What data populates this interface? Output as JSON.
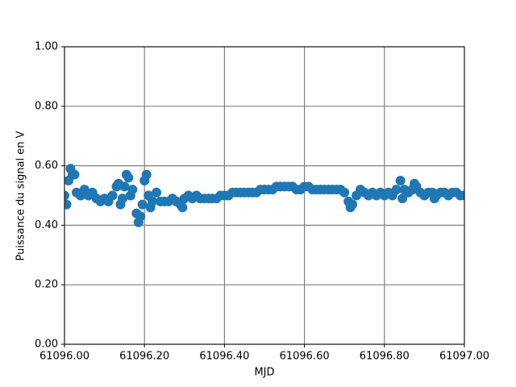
{
  "chart_data": {
    "type": "scatter",
    "xlabel": "MJD",
    "ylabel": "Puissance du signal en V",
    "xlim": [
      61096,
      61097
    ],
    "xticks": [
      {
        "value": 61096,
        "label": "61096.00"
      },
      {
        "value": 61096.2,
        "label": "61096.20"
      },
      {
        "value": 61096.4,
        "label": "61096.40"
      },
      {
        "value": 61096.6,
        "label": "61096.60"
      },
      {
        "value": 61096.8,
        "label": "61096.80"
      },
      {
        "value": 61097,
        "label": "61097.00"
      }
    ],
    "ylim": [
      0,
      1
    ],
    "yticks": [
      {
        "value": 0,
        "label": "0.00"
      },
      {
        "value": 0.2,
        "label": "0.20"
      },
      {
        "value": 0.4,
        "label": "0.40"
      },
      {
        "value": 0.6,
        "label": "0.60"
      },
      {
        "value": 0.8,
        "label": "0.80"
      },
      {
        "value": 1,
        "label": "1.00"
      }
    ],
    "grid": true,
    "series": [
      {
        "color": "#1f77b4",
        "x": [
          61096,
          61096.005,
          61096.01,
          61096.015,
          61096.02,
          61096.025,
          61096.03,
          61096.04,
          61096.05,
          61096.06,
          61096.07,
          61096.08,
          61096.09,
          61096.1,
          61096.11,
          61096.12,
          61096.13,
          61096.135,
          61096.14,
          61096.145,
          61096.15,
          61096.155,
          61096.16,
          61096.165,
          61096.17,
          61096.18,
          61096.185,
          61096.19,
          61096.195,
          61096.2,
          61096.205,
          61096.21,
          61096.215,
          61096.22,
          61096.23,
          61096.24,
          61096.25,
          61096.26,
          61096.27,
          61096.28,
          61096.29,
          61096.295,
          61096.3,
          61096.31,
          61096.32,
          61096.33,
          61096.34,
          61096.35,
          61096.36,
          61096.37,
          61096.38,
          61096.39,
          61096.4,
          61096.41,
          61096.42,
          61096.43,
          61096.44,
          61096.45,
          61096.46,
          61096.47,
          61096.48,
          61096.49,
          61096.5,
          61096.51,
          61096.52,
          61096.53,
          61096.54,
          61096.55,
          61096.56,
          61096.57,
          61096.58,
          61096.59,
          61096.6,
          61096.61,
          61096.62,
          61096.63,
          61096.64,
          61096.65,
          61096.66,
          61096.67,
          61096.68,
          61096.69,
          61096.7,
          61096.71,
          61096.715,
          61096.72,
          61096.73,
          61096.74,
          61096.75,
          61096.76,
          61096.77,
          61096.78,
          61096.79,
          61096.8,
          61096.81,
          61096.82,
          61096.83,
          61096.84,
          61096.845,
          61096.85,
          61096.86,
          61096.87,
          61096.875,
          61096.88,
          61096.89,
          61096.9,
          61096.91,
          61096.92,
          61096.925,
          61096.93,
          61096.94,
          61096.95,
          61096.96,
          61096.97,
          61096.98,
          61096.99,
          61097
        ],
        "values": [
          0.5,
          0.47,
          0.55,
          0.59,
          0.57,
          0.57,
          0.51,
          0.5,
          0.52,
          0.5,
          0.51,
          0.49,
          0.48,
          0.49,
          0.48,
          0.5,
          0.53,
          0.54,
          0.47,
          0.49,
          0.53,
          0.57,
          0.56,
          0.5,
          0.52,
          0.44,
          0.41,
          0.43,
          0.47,
          0.55,
          0.57,
          0.5,
          0.46,
          0.48,
          0.51,
          0.48,
          0.48,
          0.48,
          0.49,
          0.48,
          0.47,
          0.46,
          0.49,
          0.5,
          0.49,
          0.5,
          0.49,
          0.49,
          0.49,
          0.49,
          0.49,
          0.5,
          0.5,
          0.5,
          0.51,
          0.51,
          0.51,
          0.51,
          0.51,
          0.51,
          0.51,
          0.52,
          0.52,
          0.52,
          0.52,
          0.53,
          0.53,
          0.53,
          0.53,
          0.53,
          0.52,
          0.52,
          0.53,
          0.53,
          0.52,
          0.52,
          0.52,
          0.52,
          0.52,
          0.52,
          0.52,
          0.52,
          0.51,
          0.48,
          0.46,
          0.47,
          0.5,
          0.52,
          0.51,
          0.5,
          0.51,
          0.5,
          0.51,
          0.5,
          0.51,
          0.5,
          0.52,
          0.55,
          0.49,
          0.52,
          0.51,
          0.52,
          0.54,
          0.53,
          0.51,
          0.5,
          0.51,
          0.51,
          0.49,
          0.5,
          0.51,
          0.51,
          0.5,
          0.51,
          0.51,
          0.5,
          0.5
        ]
      }
    ]
  }
}
